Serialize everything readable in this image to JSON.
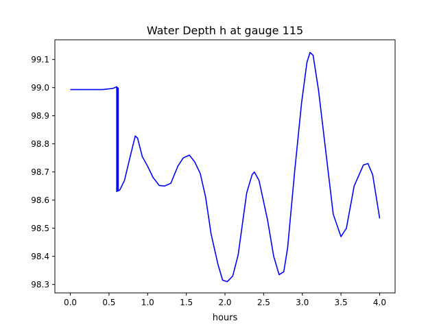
{
  "chart_data": {
    "type": "line",
    "title": "Water Depth h at gauge 115",
    "xlabel": "hours",
    "ylabel": "",
    "xlim": [
      -0.2,
      4.2
    ],
    "ylim": [
      98.27,
      99.17
    ],
    "xticks": [
      0.0,
      0.5,
      1.0,
      1.5,
      2.0,
      2.5,
      3.0,
      3.5,
      4.0
    ],
    "xtick_labels": [
      "0.0",
      "0.5",
      "1.0",
      "1.5",
      "2.0",
      "2.5",
      "3.0",
      "3.5",
      "4.0"
    ],
    "yticks": [
      98.3,
      98.4,
      98.5,
      98.6,
      98.7,
      98.8,
      98.9,
      99.0,
      99.1
    ],
    "ytick_labels": [
      "98.3",
      "98.4",
      "98.5",
      "98.6",
      "98.7",
      "98.8",
      "98.9",
      "99.0",
      "99.1"
    ],
    "grid": false,
    "series": [
      {
        "name": "h",
        "color": "#0000ff",
        "x": [
          0.0,
          0.417,
          0.55,
          0.6,
          0.6,
          0.61,
          0.61,
          0.62,
          0.62,
          0.64,
          0.7,
          0.77,
          0.84,
          0.87,
          0.93,
          1.0,
          1.07,
          1.15,
          1.22,
          1.3,
          1.39,
          1.46,
          1.54,
          1.61,
          1.68,
          1.75,
          1.82,
          1.91,
          1.97,
          2.03,
          2.1,
          2.17,
          2.28,
          2.35,
          2.38,
          2.44,
          2.55,
          2.63,
          2.7,
          2.76,
          2.81,
          2.9,
          2.99,
          3.06,
          3.1,
          3.14,
          3.21,
          3.32,
          3.4,
          3.5,
          3.57,
          3.67,
          3.79,
          3.85,
          3.91,
          4.0
        ],
        "y": [
          98.993,
          98.993,
          98.997,
          99.003,
          98.63,
          99.0,
          98.632,
          98.998,
          98.633,
          98.636,
          98.67,
          98.75,
          98.828,
          98.82,
          98.755,
          98.72,
          98.68,
          98.652,
          98.65,
          98.66,
          98.72,
          98.75,
          98.76,
          98.735,
          98.695,
          98.61,
          98.48,
          98.37,
          98.315,
          98.31,
          98.33,
          98.405,
          98.625,
          98.69,
          98.7,
          98.67,
          98.53,
          98.4,
          98.335,
          98.345,
          98.43,
          98.7,
          98.945,
          99.09,
          99.125,
          99.115,
          98.99,
          98.735,
          98.55,
          98.47,
          98.5,
          98.65,
          98.725,
          98.73,
          98.69,
          98.535
        ]
      }
    ]
  }
}
